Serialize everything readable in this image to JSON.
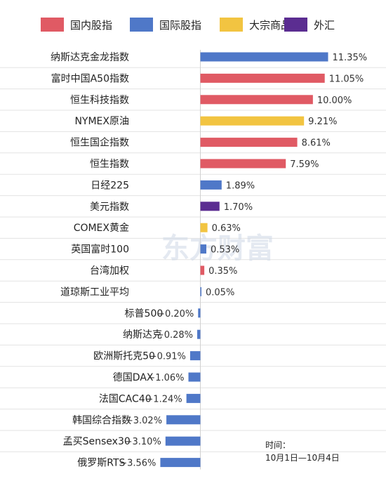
{
  "legend": [
    {
      "name": "国内股指",
      "color": "#e05a64"
    },
    {
      "name": "国际股指",
      "color": "#4f78c8"
    },
    {
      "name": "大宗商品",
      "color": "#f2c441"
    },
    {
      "name": "外汇",
      "color": "#5b2d91"
    }
  ],
  "chart_data": {
    "type": "bar",
    "orientation": "horizontal",
    "unit": "%",
    "xlim": [
      -3.6,
      11.4
    ],
    "grid": true,
    "legend_position": "top",
    "categories": [
      "纳斯达克金龙指数",
      "富时中国A50指数",
      "恒生科技指数",
      "NYMEX原油",
      "恒生国企指数",
      "恒生指数",
      "日经225",
      "美元指数",
      "COMEX黄金",
      "英国富时100",
      "台湾加权",
      "道琼斯工业平均",
      "标普500",
      "纳斯达克",
      "欧洲斯托克50",
      "德国DAX",
      "法国CAC40",
      "韩国综合指数",
      "孟买Sensex30",
      "俄罗斯RTS"
    ],
    "values": [
      11.35,
      11.05,
      10.0,
      9.21,
      8.61,
      7.59,
      1.89,
      1.7,
      0.63,
      0.53,
      0.35,
      0.05,
      -0.2,
      -0.28,
      -0.91,
      -1.06,
      -1.24,
      -3.02,
      -3.1,
      -3.56
    ],
    "labels": [
      "11.35%",
      "11.05%",
      "10.00%",
      "9.21%",
      "8.61%",
      "7.59%",
      "1.89%",
      "1.70%",
      "0.63%",
      "0.53%",
      "0.35%",
      "0.05%",
      "−0.20%",
      "−0.28%",
      "−0.91%",
      "−1.06%",
      "−1.24%",
      "−3.02%",
      "−3.10%",
      "−3.56%"
    ],
    "groups": [
      "国际股指",
      "国内股指",
      "国内股指",
      "大宗商品",
      "国内股指",
      "国内股指",
      "国际股指",
      "外汇",
      "大宗商品",
      "国际股指",
      "国内股指",
      "国际股指",
      "国际股指",
      "国际股指",
      "国际股指",
      "国际股指",
      "国际股指",
      "国际股指",
      "国际股指",
      "国际股指"
    ]
  },
  "note": {
    "line1": "时间：",
    "line2": "10月1日—10月4日"
  },
  "watermark": "东方财富"
}
